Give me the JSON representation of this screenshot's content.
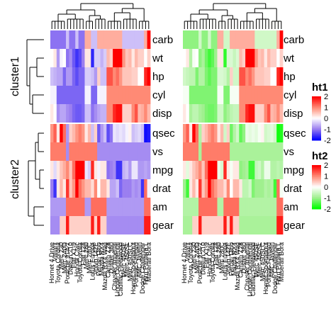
{
  "chart_data": {
    "type": "heatmap",
    "row_names": [
      "carb",
      "wt",
      "hp",
      "cyl",
      "disp",
      "qsec",
      "vs",
      "mpg",
      "drat",
      "am",
      "gear"
    ],
    "row_splits": [
      {
        "name": "cluster1",
        "rows": [
          "carb",
          "wt",
          "hp",
          "cyl",
          "disp"
        ]
      },
      {
        "name": "cluster2",
        "rows": [
          "qsec",
          "vs",
          "mpg",
          "drat",
          "am",
          "gear"
        ]
      }
    ],
    "column_names": [
      "Hornet 4 Drive",
      "Valiant",
      "Toyota Corona",
      "Merc 230",
      "Merc 240D",
      "Porsche 914-2",
      "Datsun 710",
      "Fiat X1-9",
      "Honda Civic",
      "Toyota Corolla",
      "Fiat 128",
      "Merc 280",
      "Merc 280C",
      "Lotus Europa",
      "Volvo 142E",
      "Ferrari Dino",
      "Mazda RX4",
      "Mazda RX4 Wag",
      "Camaro Z28",
      "Duster 360",
      "Chrysler Imperial",
      "Lincoln Continental",
      "Cadillac Fleetwood",
      "Merc 450SE",
      "Merc 450SL",
      "Merc 450SLC",
      "Hornet Sportabout",
      "Pontiac Firebird",
      "AMC Javelin",
      "Dodge Challenger",
      "Ford Pantera L",
      "Maserati Bora"
    ],
    "heatmaps": [
      {
        "name": "ht1",
        "legend": {
          "title": "ht1",
          "ticks": [
            "2",
            "1",
            "0",
            "-1",
            "-2"
          ],
          "colors": [
            "#ff0000",
            "#ff8a75",
            "#ffffff",
            "#9b7ff0",
            "#0000ff"
          ]
        },
        "column_order": [
          0,
          1,
          2,
          3,
          4,
          5,
          6,
          7,
          8,
          9,
          10,
          11,
          12,
          13,
          14,
          15,
          16,
          17,
          18,
          19,
          20,
          21,
          22,
          23,
          24,
          25,
          26,
          27,
          28,
          29,
          30,
          31
        ],
        "values": [
          [
            -1.1,
            -1.1,
            -1.1,
            -1.1,
            -1.1,
            -0.5,
            -1.1,
            -1.1,
            -0.5,
            -1.1,
            -1.1,
            0.7,
            0.7,
            -0.5,
            -0.5,
            0.7,
            0.7,
            0.7,
            0.7,
            0.7,
            0.7,
            0.7,
            0.7,
            -0.5,
            -0.5,
            -0.5,
            -0.5,
            -0.5,
            -0.5,
            -0.5,
            0.7,
            3.2
          ],
          [
            -0.0,
            0.2,
            -0.8,
            -0.1,
            -0.0,
            -1.1,
            -0.9,
            -1.3,
            -1.6,
            -1.4,
            -1.0,
            0.2,
            0.2,
            -1.7,
            -0.4,
            -0.4,
            -0.6,
            -0.4,
            0.6,
            0.4,
            2.2,
            2.3,
            2.1,
            0.9,
            0.5,
            0.6,
            0.2,
            0.6,
            0.4,
            0.4,
            -0.0,
            0.4
          ],
          [
            -0.5,
            -0.6,
            -0.7,
            -0.7,
            -1.2,
            -0.8,
            -0.8,
            -1.2,
            -1.4,
            -1.2,
            -1.2,
            -0.4,
            -0.4,
            -0.5,
            -0.8,
            0.4,
            -0.5,
            -0.5,
            1.4,
            1.4,
            1.0,
            1.2,
            0.9,
            0.5,
            0.5,
            0.5,
            0.4,
            0.4,
            0.0,
            0.0,
            1.7,
            2.7
          ],
          [
            -0.1,
            -0.1,
            -1.2,
            -1.2,
            -1.2,
            -1.2,
            -1.2,
            -1.2,
            -1.2,
            -1.2,
            -1.2,
            -0.1,
            -0.1,
            -1.2,
            -1.2,
            -0.1,
            -0.1,
            -0.1,
            1.0,
            1.0,
            1.0,
            1.0,
            1.0,
            1.0,
            1.0,
            1.0,
            1.0,
            1.0,
            1.0,
            1.0,
            1.0,
            1.0
          ],
          [
            0.2,
            -0.0,
            -0.9,
            -0.7,
            -0.7,
            -0.9,
            -1.0,
            -1.2,
            -1.3,
            -1.3,
            -1.2,
            -0.5,
            -0.5,
            -1.1,
            -0.9,
            -0.7,
            -0.6,
            -0.6,
            1.0,
            1.0,
            1.7,
            1.9,
            1.9,
            0.4,
            0.4,
            0.4,
            1.0,
            1.4,
            0.6,
            0.7,
            1.0,
            0.6
          ],
          [
            0.9,
            1.3,
            0.2,
            2.8,
            1.2,
            -0.8,
            0.4,
            0.6,
            0.9,
            1.1,
            0.9,
            0.2,
            0.6,
            -0.5,
            0.4,
            -1.3,
            -0.8,
            -0.5,
            -1.4,
            -1.1,
            -0.2,
            -0.3,
            -0.2,
            -0.3,
            -0.1,
            0.1,
            -0.5,
            -0.4,
            -0.3,
            -0.5,
            -1.9,
            -1.8
          ],
          [
            1.1,
            1.1,
            1.1,
            1.1,
            1.1,
            -0.9,
            1.1,
            1.1,
            1.1,
            1.1,
            1.1,
            1.1,
            1.1,
            1.1,
            1.1,
            -0.9,
            -0.9,
            -0.9,
            -0.9,
            -0.9,
            -0.9,
            -0.9,
            -0.9,
            -0.9,
            -0.9,
            -0.9,
            -0.9,
            -0.9,
            -0.9,
            -0.9,
            -0.9,
            -0.9
          ],
          [
            0.2,
            -0.3,
            0.2,
            0.5,
            0.7,
            1.0,
            0.5,
            1.2,
            2.0,
            2.3,
            2.0,
            -0.2,
            -0.4,
            1.7,
            0.2,
            -0.1,
            0.2,
            0.2,
            -1.1,
            -1.0,
            -0.9,
            -1.6,
            -1.6,
            -0.6,
            -0.5,
            -0.8,
            -0.2,
            -0.2,
            -0.8,
            -0.8,
            -0.7,
            -0.8
          ],
          [
            -1.0,
            -1.6,
            0.2,
            0.6,
            0.2,
            1.6,
            0.5,
            0.9,
            2.5,
            1.2,
            0.9,
            0.6,
            0.6,
            0.3,
            1.0,
            0.0,
            0.6,
            0.6,
            0.2,
            -0.7,
            -0.7,
            -0.5,
            -1.2,
            -1.0,
            -1.0,
            -1.0,
            -0.8,
            -0.9,
            -0.8,
            -1.6,
            1.2,
            -0.1
          ],
          [
            -0.8,
            -0.8,
            -0.8,
            -0.8,
            -0.8,
            1.2,
            1.2,
            1.2,
            1.2,
            1.2,
            1.2,
            -0.8,
            -0.8,
            1.2,
            1.2,
            1.2,
            1.2,
            1.2,
            -0.8,
            -0.8,
            -0.8,
            -0.8,
            -0.8,
            -0.8,
            -0.8,
            -0.8,
            -0.8,
            -0.8,
            -0.8,
            -0.8,
            1.2,
            1.2
          ],
          [
            -0.9,
            -0.9,
            -0.9,
            0.4,
            0.4,
            1.8,
            0.4,
            0.4,
            0.4,
            0.4,
            0.4,
            0.4,
            0.4,
            1.8,
            0.4,
            1.8,
            0.4,
            0.4,
            -0.9,
            -0.9,
            -0.9,
            -0.9,
            -0.9,
            -0.9,
            -0.9,
            -0.9,
            -0.9,
            -0.9,
            -0.9,
            -0.9,
            1.8,
            1.8
          ]
        ]
      },
      {
        "name": "ht2",
        "legend": {
          "title": "ht2",
          "ticks": [
            "2",
            "1",
            "0",
            "-1",
            "-2"
          ],
          "colors": [
            "#ff0000",
            "#ff8a75",
            "#ffffff",
            "#a0f08f",
            "#00ff00"
          ]
        },
        "column_order": [
          0,
          1,
          2,
          3,
          4,
          5,
          6,
          7,
          8,
          9,
          10,
          11,
          12,
          13,
          14,
          15,
          16,
          17,
          18,
          19,
          20,
          21,
          22,
          23,
          24,
          25,
          26,
          27,
          28,
          29,
          30,
          31
        ],
        "values": [
          [
            -1.1,
            -1.1,
            -1.1,
            -1.1,
            -1.1,
            -0.5,
            -1.1,
            -1.1,
            -0.5,
            -1.1,
            -1.1,
            0.7,
            0.7,
            -0.5,
            -0.5,
            0.7,
            0.7,
            0.7,
            0.7,
            0.7,
            0.7,
            0.7,
            0.7,
            -0.5,
            -0.5,
            -0.5,
            -0.5,
            -0.5,
            -0.5,
            -0.5,
            0.7,
            3.2
          ],
          [
            -0.0,
            0.2,
            -0.8,
            -0.1,
            -0.0,
            -1.1,
            -0.9,
            -1.3,
            -1.6,
            -1.4,
            -1.0,
            0.2,
            0.2,
            -1.7,
            -0.4,
            -0.4,
            -0.6,
            -0.4,
            0.6,
            0.4,
            2.2,
            2.3,
            2.1,
            0.9,
            0.5,
            0.6,
            0.2,
            0.6,
            0.4,
            0.4,
            -0.0,
            0.4
          ],
          [
            -0.5,
            -0.6,
            -0.7,
            -0.7,
            -1.2,
            -0.8,
            -0.8,
            -1.2,
            -1.4,
            -1.2,
            -1.2,
            -0.4,
            -0.4,
            -0.5,
            -0.8,
            0.4,
            -0.5,
            -0.5,
            1.4,
            1.4,
            1.0,
            1.2,
            0.9,
            0.5,
            0.5,
            0.5,
            0.4,
            0.4,
            0.0,
            0.0,
            1.7,
            2.7
          ],
          [
            -0.1,
            -0.1,
            -1.2,
            -1.2,
            -1.2,
            -1.2,
            -1.2,
            -1.2,
            -1.2,
            -1.2,
            -1.2,
            -0.1,
            -0.1,
            -1.2,
            -1.2,
            -0.1,
            -0.1,
            -0.1,
            1.0,
            1.0,
            1.0,
            1.0,
            1.0,
            1.0,
            1.0,
            1.0,
            1.0,
            1.0,
            1.0,
            1.0,
            1.0,
            1.0
          ],
          [
            0.2,
            -0.0,
            -0.9,
            -0.7,
            -0.7,
            -0.9,
            -1.0,
            -1.2,
            -1.3,
            -1.3,
            -1.2,
            -0.5,
            -0.5,
            -1.1,
            -0.9,
            -0.7,
            -0.6,
            -0.6,
            1.0,
            1.0,
            1.7,
            1.9,
            1.9,
            0.4,
            0.4,
            0.4,
            1.0,
            1.4,
            0.6,
            0.7,
            1.0,
            0.6
          ],
          [
            0.9,
            1.3,
            0.2,
            2.8,
            1.2,
            -0.8,
            0.4,
            0.6,
            0.9,
            1.1,
            0.9,
            0.2,
            0.6,
            -0.5,
            0.4,
            -1.3,
            -0.8,
            -0.5,
            -1.4,
            -1.1,
            -0.2,
            -0.3,
            -0.2,
            -0.3,
            -0.1,
            0.1,
            -0.5,
            -0.4,
            -0.3,
            -0.5,
            -1.9,
            -1.8
          ],
          [
            1.1,
            1.1,
            1.1,
            1.1,
            1.1,
            -0.9,
            1.1,
            1.1,
            1.1,
            1.1,
            1.1,
            1.1,
            1.1,
            1.1,
            1.1,
            -0.9,
            -0.9,
            -0.9,
            -0.9,
            -0.9,
            -0.9,
            -0.9,
            -0.9,
            -0.9,
            -0.9,
            -0.9,
            -0.9,
            -0.9,
            -0.9,
            -0.9,
            -0.9,
            -0.9
          ],
          [
            0.2,
            -0.3,
            0.2,
            0.5,
            0.7,
            1.0,
            0.5,
            1.2,
            2.0,
            2.3,
            2.0,
            -0.2,
            -0.4,
            1.7,
            0.2,
            -0.1,
            0.2,
            0.2,
            -1.1,
            -1.0,
            -0.9,
            -1.6,
            -1.6,
            -0.6,
            -0.5,
            -0.8,
            -0.2,
            -0.2,
            -0.8,
            -0.8,
            -0.7,
            -0.8
          ],
          [
            -1.0,
            -1.6,
            0.2,
            0.6,
            0.2,
            1.6,
            0.5,
            0.9,
            2.5,
            1.2,
            0.9,
            0.6,
            0.6,
            0.3,
            1.0,
            0.0,
            0.6,
            0.6,
            0.2,
            -0.7,
            -0.7,
            -0.5,
            -1.2,
            -1.0,
            -1.0,
            -1.0,
            -0.8,
            -0.9,
            -0.8,
            -1.6,
            1.2,
            -0.1
          ],
          [
            -0.8,
            -0.8,
            -0.8,
            -0.8,
            -0.8,
            1.2,
            1.2,
            1.2,
            1.2,
            1.2,
            1.2,
            -0.8,
            -0.8,
            1.2,
            1.2,
            1.2,
            1.2,
            1.2,
            -0.8,
            -0.8,
            -0.8,
            -0.8,
            -0.8,
            -0.8,
            -0.8,
            -0.8,
            -0.8,
            -0.8,
            -0.8,
            -0.8,
            1.2,
            1.2
          ],
          [
            -0.9,
            -0.9,
            -0.9,
            0.4,
            0.4,
            1.8,
            0.4,
            0.4,
            0.4,
            0.4,
            0.4,
            0.4,
            0.4,
            1.8,
            0.4,
            1.8,
            0.4,
            0.4,
            -0.9,
            -0.9,
            -0.9,
            -0.9,
            -0.9,
            -0.9,
            -0.9,
            -0.9,
            -0.9,
            -0.9,
            -0.9,
            -0.9,
            1.8,
            1.8
          ]
        ]
      }
    ]
  }
}
